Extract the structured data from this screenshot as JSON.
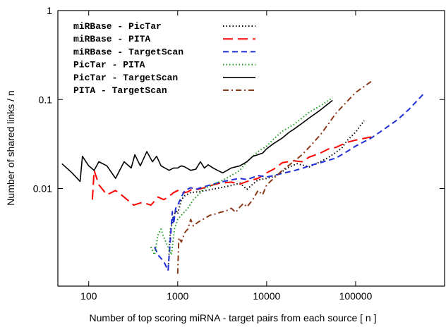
{
  "chart_data": {
    "type": "line",
    "xlabel": "Number of top scoring miRNA - target pairs from each source [ n ]",
    "ylabel": "Number of shared links / n",
    "x_scale": "log",
    "y_scale": "log",
    "xlim": [
      45,
      1000000
    ],
    "ylim": [
      0.0008,
      1
    ],
    "x_ticks": [
      100,
      1000,
      10000,
      100000
    ],
    "x_tick_labels": [
      "100",
      "1000",
      "10000",
      "100000"
    ],
    "y_ticks": [
      0.01,
      0.1,
      1
    ],
    "y_tick_labels": [
      "0.01",
      "0.1",
      "1"
    ],
    "grid": false,
    "legend_position": "top-left",
    "series": [
      {
        "name": "miRBase  -      PicTar",
        "color": "#000000",
        "dash": "dotted",
        "x": [
          780,
          830,
          880,
          950,
          1000,
          1100,
          1200,
          1400,
          1700,
          2200,
          3000,
          4000,
          5000,
          6000,
          7000,
          8000,
          10000,
          13000,
          17000,
          22000,
          30000,
          40000,
          50000,
          60000,
          70000,
          80000,
          100000,
          125000
        ],
        "y": [
          0.0012,
          0.0035,
          0.0042,
          0.0058,
          0.0052,
          0.0075,
          0.0083,
          0.009,
          0.0092,
          0.0096,
          0.0102,
          0.0108,
          0.0115,
          0.0098,
          0.0112,
          0.0125,
          0.013,
          0.014,
          0.017,
          0.019,
          0.0175,
          0.02,
          0.0225,
          0.0255,
          0.0285,
          0.0345,
          0.043,
          0.058
        ]
      },
      {
        "name": "miRBase  -        PITA",
        "color": "#ff0000",
        "dash": "long-dash",
        "x": [
          110,
          115,
          130,
          160,
          200,
          250,
          320,
          400,
          500,
          600,
          700,
          800,
          900,
          1000,
          1100,
          1300,
          1500,
          1700,
          2000,
          2500,
          3000,
          4000,
          5000,
          6000,
          8000,
          10000,
          12000,
          15000,
          20000,
          25000,
          30000,
          40000,
          50000,
          60000,
          80000,
          100000,
          150000
        ],
        "y": [
          0.0075,
          0.016,
          0.011,
          0.0085,
          0.0095,
          0.008,
          0.0065,
          0.007,
          0.0065,
          0.008,
          0.0075,
          0.0082,
          0.009,
          0.0095,
          0.0088,
          0.0092,
          0.01,
          0.0098,
          0.0102,
          0.011,
          0.0115,
          0.0118,
          0.0112,
          0.012,
          0.013,
          0.015,
          0.0165,
          0.0195,
          0.0205,
          0.02,
          0.0225,
          0.025,
          0.028,
          0.029,
          0.033,
          0.035,
          0.038
        ]
      },
      {
        "name": "miRBase  - TargetScan",
        "color": "#1f2fd6",
        "dash": "dashed",
        "x": [
          550,
          600,
          700,
          780,
          830,
          870,
          900,
          950,
          1000,
          1100,
          1200,
          1400,
          1600,
          2000,
          2500,
          3000,
          4000,
          5000,
          6000,
          8000,
          10000,
          12000,
          15000,
          20000,
          25000,
          30000,
          40000,
          60000,
          80000,
          100000,
          150000,
          200000,
          300000,
          400000,
          600000
        ],
        "y": [
          0.0022,
          0.0018,
          0.0015,
          0.0012,
          0.0028,
          0.0055,
          0.004,
          0.006,
          0.0065,
          0.008,
          0.0095,
          0.0102,
          0.0098,
          0.0105,
          0.0112,
          0.0118,
          0.0125,
          0.013,
          0.0126,
          0.014,
          0.0135,
          0.014,
          0.0148,
          0.0158,
          0.0168,
          0.018,
          0.0195,
          0.022,
          0.026,
          0.03,
          0.037,
          0.045,
          0.06,
          0.078,
          0.12
        ]
      },
      {
        "name": "PicTar   -        PITA",
        "color": "#1a9a1a",
        "dash": "dotted",
        "x": [
          500,
          550,
          600,
          650,
          700,
          780,
          850,
          920,
          1000,
          1100,
          1300,
          1500,
          1700,
          2000,
          2500,
          3000,
          3500,
          4000,
          5000,
          6000,
          7000,
          8000,
          10000,
          12000,
          15000,
          20000,
          25000,
          30000,
          40000,
          55000
        ],
        "y": [
          0.0022,
          0.0018,
          0.003,
          0.0035,
          0.0028,
          0.0022,
          0.0018,
          0.0035,
          0.0045,
          0.005,
          0.006,
          0.0075,
          0.0085,
          0.01,
          0.011,
          0.012,
          0.013,
          0.014,
          0.016,
          0.02,
          0.023,
          0.026,
          0.03,
          0.036,
          0.044,
          0.052,
          0.062,
          0.072,
          0.085,
          0.105
        ]
      },
      {
        "name": "PicTar   - TargetScan",
        "color": "#000000",
        "dash": "solid",
        "x": [
          50,
          65,
          80,
          85,
          100,
          115,
          130,
          160,
          200,
          250,
          300,
          330,
          380,
          450,
          520,
          580,
          650,
          720,
          800,
          900,
          1000,
          1100,
          1200,
          1400,
          1600,
          1800,
          2000,
          2200,
          2500,
          2800,
          3200,
          3600,
          4000,
          5000,
          6000,
          7000,
          8000,
          9000,
          10000,
          12000,
          15000,
          18000,
          20000,
          25000,
          30000,
          40000,
          55000
        ],
        "y": [
          0.019,
          0.015,
          0.012,
          0.023,
          0.018,
          0.016,
          0.02,
          0.018,
          0.013,
          0.02,
          0.017,
          0.024,
          0.018,
          0.026,
          0.02,
          0.023,
          0.018,
          0.017,
          0.016,
          0.017,
          0.017,
          0.018,
          0.0175,
          0.016,
          0.0165,
          0.02,
          0.017,
          0.0185,
          0.017,
          0.016,
          0.015,
          0.016,
          0.017,
          0.018,
          0.02,
          0.023,
          0.024,
          0.025,
          0.028,
          0.032,
          0.037,
          0.043,
          0.046,
          0.054,
          0.062,
          0.076,
          0.098
        ]
      },
      {
        "name": "PITA     - TargetScan",
        "color": "#8b3a1a",
        "dash": "dash-dot",
        "x": [
          1000,
          1030,
          1100,
          1200,
          1300,
          1400,
          1500,
          1700,
          2000,
          2300,
          2700,
          3000,
          3500,
          4000,
          4500,
          5000,
          5500,
          6000,
          7000,
          8000,
          9000,
          10000,
          12000,
          15000,
          20000,
          25000,
          30000,
          40000,
          50000,
          60000,
          80000,
          100000,
          150000
        ],
        "y": [
          0.0011,
          0.0028,
          0.0025,
          0.0032,
          0.0035,
          0.0045,
          0.0038,
          0.0042,
          0.0046,
          0.005,
          0.0052,
          0.0054,
          0.0056,
          0.006,
          0.0054,
          0.0062,
          0.0068,
          0.0062,
          0.0075,
          0.0095,
          0.0085,
          0.011,
          0.013,
          0.016,
          0.02,
          0.024,
          0.029,
          0.04,
          0.054,
          0.07,
          0.095,
          0.12,
          0.16
        ]
      }
    ]
  }
}
